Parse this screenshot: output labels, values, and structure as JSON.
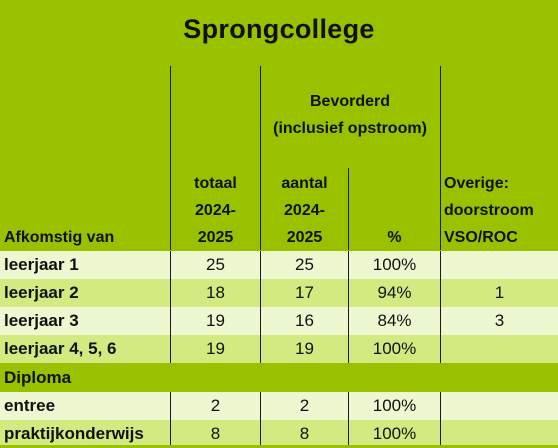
{
  "title": "Sprongcollege",
  "headers": {
    "afkomstig": "Afkomstig van",
    "totaal": [
      "totaal",
      "2024-",
      "2025"
    ],
    "bevorderd": [
      "Bevorderd",
      "(inclusief opstroom)"
    ],
    "aantal": [
      "aantal",
      "2024-",
      "2025"
    ],
    "percent": "%",
    "overige": [
      "Overige:",
      "doorstroom",
      "VSO/ROC"
    ]
  },
  "rows": [
    {
      "label": "leerjaar 1",
      "totaal": "25",
      "aantal": "25",
      "percent": "100%",
      "overige": ""
    },
    {
      "label": "leerjaar 2",
      "totaal": "18",
      "aantal": "17",
      "percent": "94%",
      "overige": "1"
    },
    {
      "label": "leerjaar 3",
      "totaal": "19",
      "aantal": "16",
      "percent": "84%",
      "overige": "3"
    },
    {
      "label": "leerjaar 4, 5, 6",
      "totaal": "19",
      "aantal": "19",
      "percent": "100%",
      "overige": ""
    }
  ],
  "diploma_section": "Diploma",
  "diploma_rows": [
    {
      "label": "entree",
      "totaal": "2",
      "aantal": "2",
      "percent": "100%",
      "overige": ""
    },
    {
      "label": "praktijkonderwijs",
      "totaal": "8",
      "aantal": "8",
      "percent": "100%",
      "overige": ""
    }
  ]
}
